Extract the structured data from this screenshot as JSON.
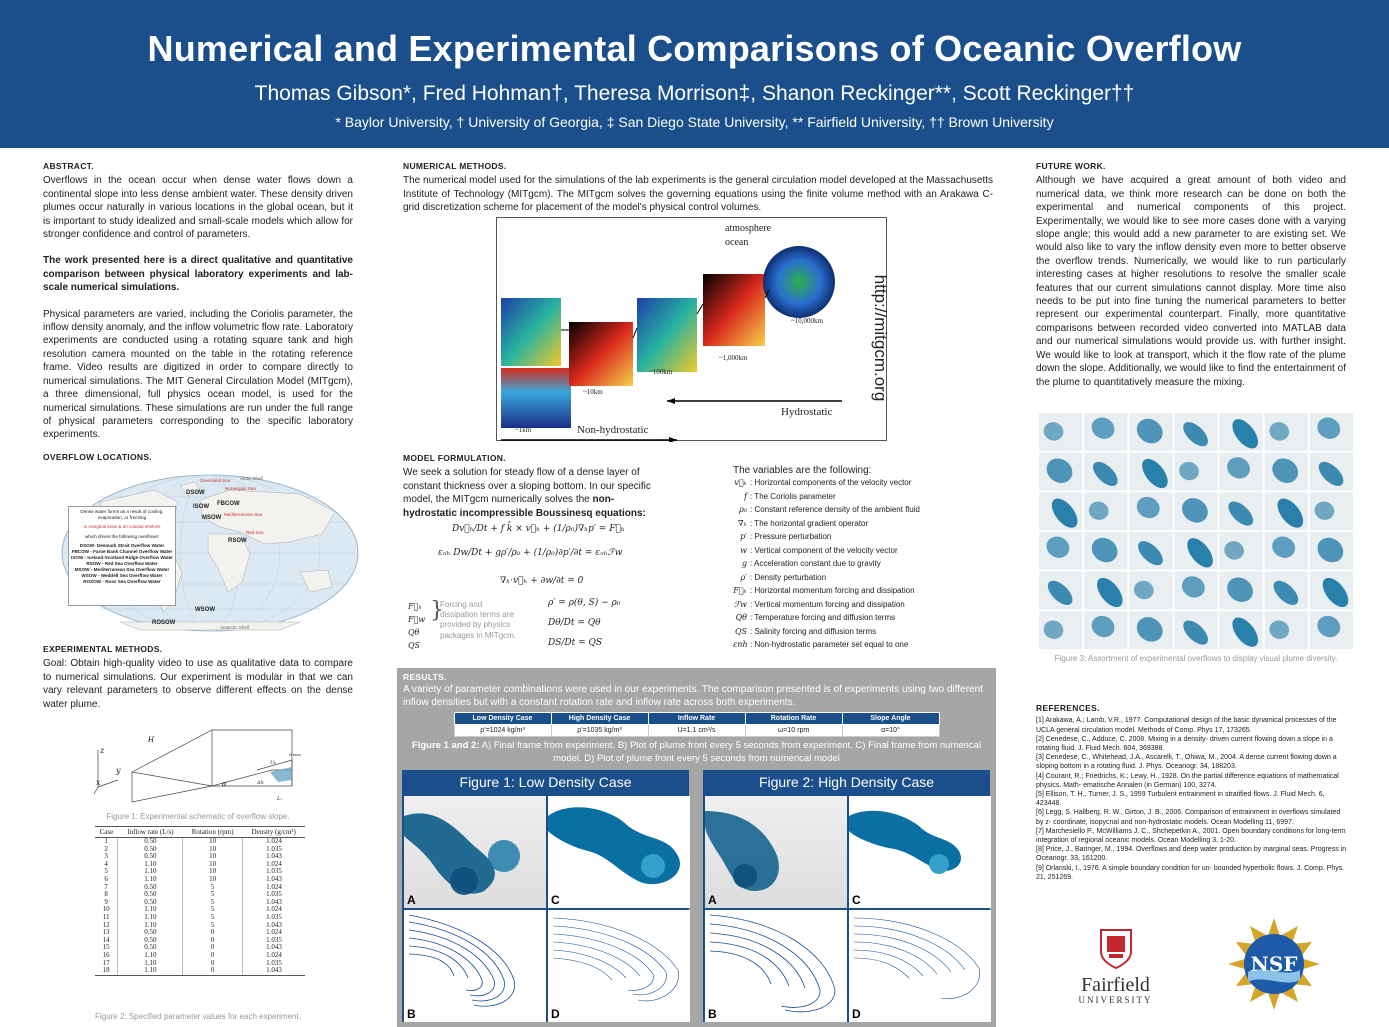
{
  "header": {
    "title": "Numerical and Experimental Comparisons of Oceanic Overflow",
    "authors": "Thomas Gibson*, Fred Hohman†, Theresa Morrison‡, Shanon Reckinger**, Scott Reckinger††",
    "affiliations": "* Baylor University, † University of Georgia, ‡ San Diego State University, ** Fairfield University, †† Brown University"
  },
  "abstract": {
    "title": "Abstract.",
    "p1": "Overflows in the ocean occur when dense water flows down a continental slope into less dense ambient water. These density driven plumes occur naturally in various locations in the global ocean, but it is important to study idealized and small-scale models which allow for stronger confidence and control of parameters.",
    "p2": "The work presented here is a direct qualitative and quantitative comparison between physical laboratory experiments and lab-scale numerical simulations.",
    "p3": "Physical parameters are varied, including the Coriolis parameter, the inflow density anomaly, and the inflow volumetric flow rate. Laboratory experiments are conducted using a rotating square tank and high resolution camera mounted on the table in the rotating reference frame. Video results are digitized in order to compare directly to numerical simulations. The MIT General Circulation Model (MITgcm), a three dimensional, full physics ocean model, is used for the numerical simulations. These simulations are run under the full range of physical parameters corresponding to the specific laboratory experiments."
  },
  "overflow_locations": {
    "title": "Overflow Locations.",
    "map_labels": [
      "Greenland Sea",
      "Arctic Shelf",
      "Norwegian Sea",
      "DSOW",
      "ISOW",
      "FBCOW",
      "MSOW",
      "Mediterranean Sea",
      "Red Sea",
      "RSOW",
      "WSOW",
      "ROSOW",
      "Antarctic Shelf"
    ],
    "legend_intro": "Dense water forms as a result of cooling, evaporation, or freezing",
    "legend_mid": "in marginal seas & on coastal shelves",
    "legend_which": "which drives the following overflows:",
    "legend_items": [
      "DSOW- Denmark Strait Overflow Water",
      "FBCOW - Faroe Bank Channel Overflow Water",
      "ISOW - Iceland-Scotland Ridge Overflow Water",
      "RSOW - Red Sea Overflow Water",
      "MSOW - Mediterranean Sea Overflow Water",
      "WSOW - Weddell Sea Overflow Water",
      "ROSOW - Ross Sea Overflow Water"
    ]
  },
  "experimental_methods": {
    "title": "Experimental Methods.",
    "text": "Goal: Obtain high-quality video to use as qualitative data to compare to numerical simulations. Our experiment is modular in that we can vary relevant parameters to observe different effects on the dense water plume.",
    "fig1_caption": "Figure 1: Experimental schematic of overflow slope.",
    "fig2_caption": "Figure 2: Specified parameter values for each experiment.",
    "table": {
      "headers": [
        "Case",
        "Inflow rate (L/s)",
        "Rotation (rpm)",
        "Density (g/cm³)"
      ],
      "rows": [
        [
          "1",
          "0.50",
          "10",
          "1.024"
        ],
        [
          "2",
          "0.50",
          "10",
          "1.035"
        ],
        [
          "3",
          "0.50",
          "10",
          "1.043"
        ],
        [
          "4",
          "1.10",
          "10",
          "1.024"
        ],
        [
          "5",
          "1.10",
          "10",
          "1.035"
        ],
        [
          "6",
          "1.10",
          "10",
          "1.043"
        ],
        [
          "7",
          "0.50",
          "5",
          "1.024"
        ],
        [
          "8",
          "0.50",
          "5",
          "1.035"
        ],
        [
          "9",
          "0.50",
          "5",
          "1.043"
        ],
        [
          "10",
          "1.10",
          "5",
          "1.024"
        ],
        [
          "11",
          "1.10",
          "5",
          "1.035"
        ],
        [
          "12",
          "1.10",
          "5",
          "1.043"
        ],
        [
          "13",
          "0.50",
          "0",
          "1.024"
        ],
        [
          "14",
          "0.50",
          "0",
          "1.035"
        ],
        [
          "15",
          "0.50",
          "0",
          "1.043"
        ],
        [
          "16",
          "1.10",
          "0",
          "1.024"
        ],
        [
          "17",
          "1.10",
          "0",
          "1.035"
        ],
        [
          "18",
          "1.10",
          "0",
          "1.043"
        ]
      ]
    },
    "schematic_labels": [
      "z",
      "y",
      "x",
      "H",
      "α",
      "U₀",
      "Δh",
      "Lₒ",
      "Hmax"
    ]
  },
  "numerical_methods": {
    "title": "Numerical Methods.",
    "text": "The numerical model used for the simulations of the lab experiments is the general circulation model developed at the Massachusetts Institute of Technology (MITgcm). The MITgcm solves the governing equations using the finite volume method with an Arakawa C-grid discretization scheme for placement of the model's physical control volumes.",
    "scale_labels": [
      "atmosphere",
      "ocean",
      "~10,000km",
      "~1,000km",
      "~100km",
      "~10km",
      "~1km",
      "Non-hydrostatic",
      "Hydrostatic"
    ],
    "url": "http://mitgcm.org"
  },
  "model_formulation": {
    "title": "Model Formulation.",
    "text_a": "We seek a solution for steady flow of a dense layer of constant thickness over a sloping bottom. In our specific model, the MITgcm numerically solves the ",
    "text_b": "non-hydrostatic incompressible Boussinesq equations:",
    "forcing_note": "Forcing and dissipation terms are provided by physics packages in MITgcm.",
    "vars_title": "The variables are the following:",
    "vars": [
      {
        "sym": "v⃗ₕ",
        "desc": ": Horizontal components of the velocity vector"
      },
      {
        "sym": "f",
        "desc": ": The Coriolis parameter"
      },
      {
        "sym": "ρ₀",
        "desc": ": Constant reference density of the ambient fluid"
      },
      {
        "sym": "∇ₕ",
        "desc": ": The horizontal gradient operator"
      },
      {
        "sym": "p′",
        "desc": ": Pressure perturbation"
      },
      {
        "sym": "w",
        "desc": ": Vertical component of the velocity vector"
      },
      {
        "sym": "g",
        "desc": ": Acceleration constant due to gravity"
      },
      {
        "sym": "ρ′",
        "desc": ": Density perturbation"
      },
      {
        "sym": "F⃗ₕ",
        "desc": ": Horizontal momentum forcing and dissipation"
      },
      {
        "sym": "ℱw",
        "desc": ": Vertical momentum forcing and dissipation"
      },
      {
        "sym": "Qθ",
        "desc": ": Temperature forcing and diffusion terms"
      },
      {
        "sym": "QS",
        "desc": ": Salinity forcing and diffusion terms"
      },
      {
        "sym": "εnh",
        "desc": ": Non-hydrostatic parameter set equal to one"
      }
    ]
  },
  "results": {
    "title": "Results.",
    "text": "A variety of parameter combinations were used in our experiments. The comparison presented is of experiments using two different inflow densities but with a constant rotation rate and inflow rate across both experiments.",
    "table_headers": [
      "Low Density Case",
      "High Density Case",
      "Inflow Rate",
      "Rotation Rate",
      "Slope Angle"
    ],
    "table_values": [
      "ρ'=1024 kg/m³",
      "ρ'=1035 kg/m³",
      "U=1.1 cm³/s",
      "ω=10 rpm",
      "α=10°"
    ],
    "caption_bold": "Figure 1 and 2:",
    "caption": " A) Final frame from experiment. B) Plot of plume front every 5 seconds from experiment. C) Final frame from numerical model. D) Plot of plume front every 5 seconds from numerical model",
    "fig1_title": "Figure 1: Low Density Case",
    "fig2_title": "Figure 2: High Density Case",
    "labels": [
      "A",
      "B",
      "C",
      "D"
    ]
  },
  "future_work": {
    "title": "Future Work.",
    "text": "Although we have acquired a great amount of both video and numerical data, we think more research can be done on both the experimental and numerical components of this project. Experimentally, we would like to see more cases done with a varying slope angle; this would add a new parameter to are existing set. We would also like to vary the inflow density even more to better observe the overflow trends. Numerically, we would like to run particularly interesting cases at higher resolutions to resolve the smaller scale features that our current simulations cannot display. More time also needs to be put into fine tuning the numerical parameters to better represent our experimental counterpart. Finally, more quantitative comparisons between recorded video converted into MATLAB data and our numerical simulations would provide us. with further insight. We would like to look at transport, which it the flow rate of the plume down the slope. Additionally, we would like to find the entertainment of the plume to quantitatively measure the mixing.",
    "fig3_caption": "Figure 3: Assortment of experimental overflows to display visual plume diversity."
  },
  "references": {
    "title": "References.",
    "items": [
      "[1] Arakawa, A.; Lamb, V.R., 1977. Computational design of the basic dynamical processes of the UCLA general circulation model. Methods of Comp. Phys 17, 173265.",
      "[2] Cenedese, C., Adduce, C. 2008. Mixing in a density- driven current flowing down a slope in a rotating fluid. J. Fluid Mech. 604, 369388.",
      "[3] Cenedese, C., Whitehead, J.A., Ascarelli, T., Ohiwa, M., 2004. A dense current flowing down a sloping bottom in a rotating fluid. J. Phys. Oceanogr. 34, 188203.",
      "[4] Courant, R.; Friedrichs, K.; Lewy, H., 1928. On the partial difference equations of mathematical physics. Math- ematische Annalen (in German) 100, 3274.",
      "[5] Ellison, T. H., Turner, J. S., 1959 Turbulent entrainment in stratified flows. J. Fluid Mech. 6, 423448.",
      "[6] Legg, S. Hallberg, R. W., Girton, J. B., 2006. Comparison of entrainment in overflows simulated by z- coordinate, isopycnal and non-hydrostatic models. Ocean Modelling 11, 6997.",
      "[7] Marchesiello P., McWilliams J. C., Shchepetkin A., 2001. Open boundary conditions for long-term integration of regional oceanic models. Ocean Modelling 3, 1-20.",
      "[8] Price, J., Baringer, M., 1994. Overflows and deep water production by marginal seas. Progress in Oceanogr. 33, 161200.",
      "[9] Orlanski, I., 1976. A simple boundary condition for un- bounded hyperbolic flows. J. Comp. Phys. 21, 251269."
    ]
  },
  "logos": {
    "fairfield_name": "Fairfield",
    "fairfield_sub": "UNIVERSITY",
    "nsf": "NSF"
  },
  "colors": {
    "header_bg": "#1a4f8b",
    "results_bg": "#a6a6a6",
    "plume": "#0d6fa0"
  }
}
